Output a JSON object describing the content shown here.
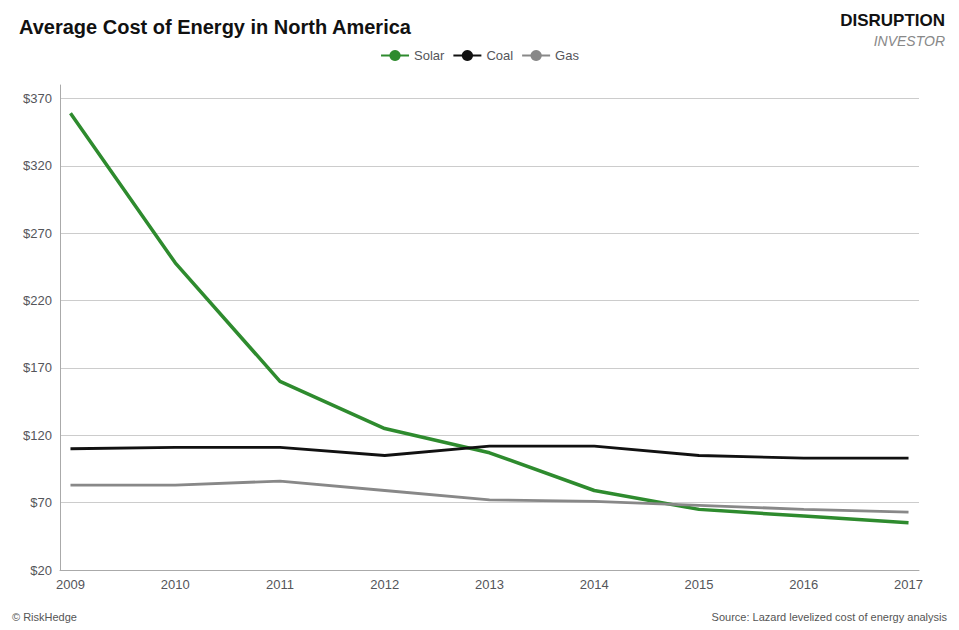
{
  "chart_data": {
    "type": "line",
    "title": "Average Cost of Energy in North America",
    "x": [
      2009,
      2010,
      2011,
      2012,
      2013,
      2014,
      2015,
      2016,
      2017
    ],
    "series": [
      {
        "name": "Solar",
        "color": "#2e8b2e",
        "values": [
          359,
          248,
          160,
          125,
          107,
          79,
          65,
          60,
          55
        ]
      },
      {
        "name": "Coal",
        "color": "#111111",
        "values": [
          110,
          111,
          111,
          105,
          112,
          112,
          105,
          103,
          103
        ]
      },
      {
        "name": "Gas",
        "color": "#888888",
        "values": [
          83,
          83,
          86,
          79,
          72,
          71,
          68,
          65,
          63
        ]
      }
    ],
    "xlim": [
      2008.9,
      2017.1
    ],
    "xticks": [
      2009,
      2010,
      2011,
      2012,
      2013,
      2014,
      2015,
      2016,
      2017
    ],
    "ylim": [
      20,
      380
    ],
    "yticks": [
      {
        "value": 20,
        "label": "$20"
      },
      {
        "value": 70,
        "label": "$70"
      },
      {
        "value": 120,
        "label": "$120"
      },
      {
        "value": 170,
        "label": "$170"
      },
      {
        "value": 220,
        "label": "$220"
      },
      {
        "value": 270,
        "label": "$270"
      },
      {
        "value": 320,
        "label": "$320"
      },
      {
        "value": 370,
        "label": "$370"
      }
    ],
    "grid": true,
    "legend": "top",
    "annotations": [
      "© RiskHedge",
      "Source: Lazard levelized cost of energy analysis",
      "DISRUPTION",
      "INVESTOR"
    ]
  }
}
